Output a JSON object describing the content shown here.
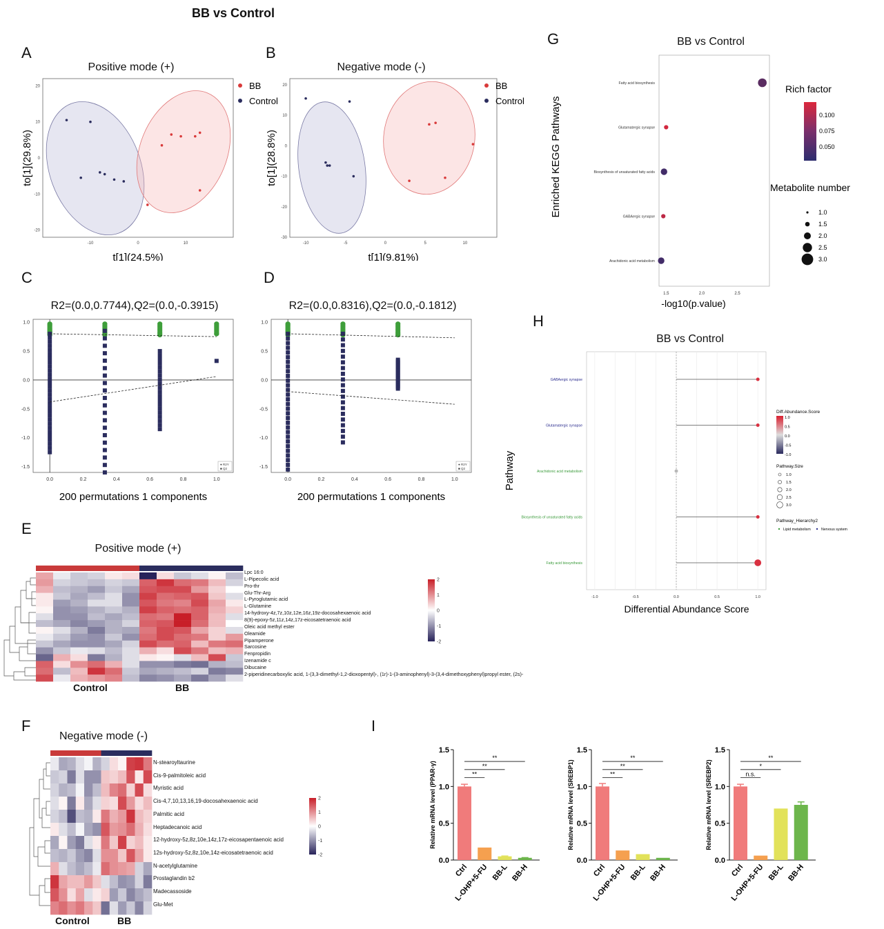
{
  "figure_title": "BB vs Control",
  "panels": {
    "A": {
      "letter": "A",
      "title": "Positive mode (+)",
      "xlabel": "t[1](24.5%)",
      "ylabel": "to[1](29.8%)",
      "legend": [
        "BB",
        "Control"
      ],
      "xticks": [
        "-10",
        "0",
        "10"
      ],
      "yticks": [
        "20",
        "10",
        "0",
        "-10",
        "-20"
      ]
    },
    "B": {
      "letter": "B",
      "title": "Negative mode (-)",
      "xlabel": "t[1](9.81%)",
      "ylabel": "to[1](28.8%)",
      "legend": [
        "BB",
        "Control"
      ],
      "xticks": [
        "-10",
        "-5",
        "0",
        "5",
        "10"
      ],
      "yticks": [
        "20",
        "10",
        "0",
        "-10",
        "-20",
        "-30"
      ]
    },
    "C": {
      "letter": "C",
      "title": "R2=(0.0,0.7744),Q2=(0.0,-0.3915)",
      "xlabel": "200 permutations 1 components",
      "xticks": [
        "0.0",
        "0.2",
        "0.4",
        "0.6",
        "0.8",
        "1.0"
      ],
      "yticks": [
        "1.0",
        "0.5",
        "0.0",
        "-0.5",
        "-1.0",
        "-1.5"
      ],
      "legend": [
        "R2Y",
        "Q2"
      ]
    },
    "D": {
      "letter": "D",
      "title": "R2=(0.0,0.8316),Q2=(0.0,-0.1812)",
      "xlabel": "200 permutations 1 components",
      "xticks": [
        "0.0",
        "0.2",
        "0.4",
        "0.6",
        "0.8",
        "1.0"
      ],
      "yticks": [
        "1.0",
        "0.5",
        "0.0",
        "-0.5",
        "-1.0",
        "-1.5"
      ],
      "legend": [
        "R2Y",
        "Q2"
      ]
    },
    "E": {
      "letter": "E",
      "title": "Positive mode (+)",
      "groups": [
        "Control",
        "BB"
      ],
      "rows": [
        "Lpc 16:0",
        "L-Pipecolic acid",
        "Pro-thr",
        "Glu-Thr-Arg",
        "L-Pyroglutamic acid",
        "L-Glutamine",
        "14-hydroxy-4z,7z,10z,12e,16z,19z-docosahexaenoic acid",
        "8(9)-epoxy-5z,11z,14z,17z-eicosatetraenoic acid",
        "Oleic acid methyl ester",
        "Oleamide",
        "Pipamperone",
        "Sarcosine",
        "Fenpropidin",
        "Izenamide c",
        "Dibucaine",
        "2-piperidinecarboxylic acid, 1-(3,3-dimethyl-1,2-dioxopentyl)-, (1r)-1-(3-aminophenyl)-3-(3,4-dimethoxyphenyl)propyl ester, (2s)-"
      ],
      "scale": [
        "2",
        "1",
        "0",
        "-1",
        "-2"
      ]
    },
    "F": {
      "letter": "F",
      "title": "Negative mode (-)",
      "groups": [
        "Control",
        "BB"
      ],
      "rows": [
        "N-stearoyltaurine",
        "Cis-9-palmitoleic acid",
        "Myristic acid",
        "Cis-4,7,10,13,16,19-docosahexaenoic acid",
        "Palmitic acid",
        "Heptadecanoic acid",
        "12-hydroxy-5z,8z,10e,14z,17z-eicosapentaenoic acid",
        "12s-hydroxy-5z,8z,10e,14z-eicosatetraenoic acid",
        "N-acetylglutamine",
        "Prostaglandin b2",
        "Madecassoside",
        "Glu-Met"
      ],
      "scale": [
        "2",
        "1",
        "0",
        "-1",
        "-2"
      ]
    },
    "G": {
      "letter": "G",
      "title": "BB vs Control",
      "xlabel": "-log10(p.value)",
      "ylabel": "Enriched KEGG Pathways",
      "xticks": [
        "1.5",
        "2.0",
        "2.5"
      ],
      "pathways": [
        "Fatty acid biosynthesis",
        "Glutamatergic synapse",
        "Biosynthesis of unsaturated fatty acids",
        "GABAergic synapse",
        "Arachidonic acid metabolism"
      ],
      "rich_title": "Rich factor",
      "rich_ticks": [
        "0.100",
        "0.075",
        "0.050"
      ],
      "size_title": "Metabolite number",
      "size_ticks": [
        "1.0",
        "1.5",
        "2.0",
        "2.5",
        "3.0"
      ]
    },
    "H": {
      "letter": "H",
      "title": "BB vs Control",
      "xlabel": "Differential Abundance Score",
      "ylabel": "Pathway",
      "xticks": [
        "-1.0",
        "-0.5",
        "0.0",
        "0.5",
        "1.0"
      ],
      "pathways": [
        "GABAergic synapse",
        "Glutamatergic synapse",
        "Arachidonic acid metabolism",
        "Biosynthesis of unsaturated fatty acids",
        "Fatty acid biosynthesis"
      ],
      "legend_score_title": "Diff.Abundance.Score",
      "legend_score_ticks": [
        "1.0",
        "0.5",
        "0.0",
        "-0.5",
        "-1.0"
      ],
      "legend_size_title": "Pathway.Size",
      "legend_size_ticks": [
        "1.0",
        "1.5",
        "2.0",
        "2.5",
        "3.0"
      ],
      "legend_hier_title": "Pathway_Hierarchy2",
      "legend_hier_items": [
        "Lipid metabolism",
        "Nervous system"
      ]
    },
    "I": {
      "letter": "I",
      "groups": [
        "Ctrl",
        "L-OHP+5-FU",
        "BB-L",
        "BB-H"
      ],
      "yticks": [
        "1.5",
        "1.0",
        "0.5",
        "0.0"
      ]
    }
  },
  "chart_data": [
    {
      "type": "scatter",
      "panel": "A",
      "xlim": [
        -20,
        20
      ],
      "ylim": [
        -22,
        22
      ],
      "series": [
        {
          "name": "BB",
          "x": [
            7,
            9,
            12,
            13,
            5,
            13,
            2
          ],
          "y": [
            6.5,
            6,
            6,
            7,
            3.5,
            -9,
            -13
          ]
        },
        {
          "name": "Control",
          "x": [
            -15,
            -10,
            -8,
            -7,
            -5,
            -3,
            -12
          ],
          "y": [
            10.5,
            10,
            -4,
            -4.5,
            -6,
            -6.5,
            -5.5
          ]
        }
      ]
    },
    {
      "type": "scatter",
      "panel": "B",
      "xlim": [
        -12,
        14
      ],
      "ylim": [
        -30,
        22
      ],
      "series": [
        {
          "name": "BB",
          "x": [
            5.5,
            6.3,
            11,
            7.5,
            3
          ],
          "y": [
            7,
            7.5,
            0.5,
            -10.5,
            -11.5
          ]
        },
        {
          "name": "Control",
          "x": [
            -10,
            -4.5,
            -7.5,
            -7.3,
            -7,
            -4
          ],
          "y": [
            15.5,
            14.5,
            -5.5,
            -6.5,
            -6.5,
            -10
          ]
        }
      ]
    },
    {
      "type": "scatter",
      "panel": "C",
      "xlim": [
        -0.1,
        1.1
      ],
      "ylim": [
        -1.6,
        1.05
      ],
      "series": [
        {
          "name": "R2Y",
          "x": [
            0,
            0.33,
            0.66,
            1.0
          ],
          "y": [
            0.95,
            0.93,
            0.93,
            0.8
          ]
        },
        {
          "name": "Q2",
          "x": [
            0,
            0.33,
            0.66,
            1.0
          ],
          "y": [
            -1.25,
            -1.6,
            -0.85,
            0.33
          ]
        }
      ],
      "regression": {
        "R2": [
          0.0,
          0.7744
        ],
        "Q2": [
          0.0,
          -0.3915
        ]
      }
    },
    {
      "type": "scatter",
      "panel": "D",
      "xlim": [
        -0.1,
        1.1
      ],
      "ylim": [
        -1.6,
        1.05
      ],
      "series": [
        {
          "name": "R2Y",
          "x": [
            0,
            0.33,
            0.66
          ],
          "y": [
            0.97,
            0.97,
            0.95
          ]
        },
        {
          "name": "Q2",
          "x": [
            0,
            0.33,
            0.66
          ],
          "y": [
            -1.55,
            -1.08,
            -0.15
          ]
        }
      ],
      "regression": {
        "R2": [
          0.0,
          0.8316
        ],
        "Q2": [
          0.0,
          -0.1812
        ]
      }
    },
    {
      "type": "heatmap",
      "panel": "E",
      "cols": 12,
      "values": [
        [
          0.8,
          -0.2,
          -0.5,
          -0.4,
          0.2,
          0.3,
          -2,
          0.3,
          -0.5,
          -0.3,
          0.1,
          -0.6
        ],
        [
          0.9,
          -0.4,
          -0.5,
          -0.6,
          -0.4,
          -0.5,
          1.4,
          1.8,
          1.3,
          1.2,
          0.6,
          -0.4
        ],
        [
          0.7,
          -0.6,
          -0.7,
          -0.9,
          -0.5,
          -0.8,
          1.5,
          1.6,
          1.6,
          0.9,
          0.4,
          0.0
        ],
        [
          0.2,
          -0.5,
          -0.8,
          -0.6,
          -0.3,
          -1.0,
          1.7,
          1.3,
          1.4,
          1.5,
          0.5,
          -0.3
        ],
        [
          0.2,
          -0.9,
          -0.7,
          -0.3,
          -0.3,
          -1.0,
          1.5,
          1.2,
          1.1,
          1.6,
          0.8,
          0.2
        ],
        [
          0.1,
          -1.0,
          -0.9,
          -0.7,
          -0.5,
          -0.7,
          1.7,
          1.4,
          1.3,
          1.4,
          0.7,
          0.4
        ],
        [
          -0.3,
          -1.0,
          -1.0,
          -0.6,
          -0.8,
          -0.6,
          1.3,
          1.2,
          2.0,
          1.4,
          0.6,
          -0.3
        ],
        [
          -0.6,
          -0.8,
          -1.1,
          -0.9,
          -0.7,
          -0.4,
          1.4,
          1.5,
          2.1,
          1.3,
          0.6,
          0.0
        ],
        [
          0.1,
          -0.3,
          -0.7,
          -1.2,
          -0.7,
          -0.8,
          1.2,
          1.6,
          1.5,
          0.8,
          0.4,
          -0.3
        ],
        [
          -0.2,
          -0.5,
          -0.9,
          -1.0,
          -0.5,
          -1.0,
          1.3,
          1.6,
          1.3,
          1.2,
          0.4,
          0.9
        ],
        [
          -0.5,
          -0.8,
          -1.0,
          -1.0,
          -0.8,
          -0.4,
          1.6,
          1.3,
          1.4,
          0.6,
          1.2,
          1.3
        ],
        [
          -1.0,
          -0.5,
          -0.2,
          -0.3,
          -0.6,
          -0.3,
          0.7,
          0.3,
          1.6,
          1.2,
          0.6,
          0.7
        ],
        [
          -1.4,
          0.7,
          0.3,
          -1.2,
          -0.7,
          -0.3,
          0.2,
          0.1,
          -0.3,
          0.6,
          1.6,
          -0.5
        ],
        [
          1.4,
          0.3,
          1.0,
          1.3,
          0.7,
          -0.3,
          -1.0,
          -1.0,
          -1.2,
          -1.3,
          -0.7,
          -0.6
        ],
        [
          1.3,
          -0.6,
          0.6,
          1.8,
          1.3,
          -0.5,
          -0.8,
          -0.7,
          -0.6,
          -0.4,
          -1.2,
          -1.1
        ],
        [
          1.6,
          -0.2,
          0.7,
          0.9,
          1.1,
          -0.6,
          -1.1,
          -1.0,
          -0.8,
          -1.2,
          -0.8,
          -0.3
        ]
      ]
    },
    {
      "type": "heatmap",
      "panel": "F",
      "cols": 12,
      "values": [
        [
          -0.2,
          -0.8,
          -0.7,
          -0.3,
          -0.1,
          -0.7,
          -0.4,
          0.3,
          0.1,
          1.7,
          1.8,
          1.2
        ],
        [
          -0.5,
          -0.4,
          -1.2,
          -0.3,
          -1.0,
          -1.0,
          0.5,
          0.4,
          0.6,
          1.5,
          0.2,
          1.6
        ],
        [
          -0.4,
          -0.7,
          -0.6,
          -0.1,
          -1.0,
          -0.6,
          0.6,
          1.1,
          1.3,
          0.4,
          1.6,
          0.3
        ],
        [
          -0.3,
          0.1,
          -1.2,
          0.2,
          -0.8,
          -0.3,
          0.4,
          0.3,
          1.6,
          0.9,
          0.3,
          0.6
        ],
        [
          -0.4,
          -0.6,
          -1.6,
          -0.6,
          -0.7,
          0.2,
          1.2,
          0.7,
          0.9,
          1.8,
          0.6,
          0.4
        ],
        [
          0.2,
          -0.3,
          -0.6,
          -0.1,
          -0.8,
          -1.0,
          1.5,
          0.9,
          1.0,
          1.3,
          0.7,
          0.3
        ],
        [
          -0.8,
          0.1,
          -0.9,
          -1.2,
          -0.3,
          0.2,
          1.2,
          0.5,
          1.7,
          0.4,
          0.6,
          0.2
        ],
        [
          -0.6,
          -0.7,
          -0.5,
          -0.9,
          -1.1,
          -0.3,
          1.0,
          1.0,
          0.5,
          1.5,
          0.8,
          0.2
        ],
        [
          0.7,
          -0.3,
          -0.6,
          -0.8,
          -0.6,
          -0.2,
          1.3,
          1.0,
          0.9,
          0.8,
          -0.4,
          -0.8
        ],
        [
          1.8,
          0.8,
          0.6,
          0.6,
          0.9,
          0.5,
          -0.3,
          -0.6,
          -1.0,
          -0.9,
          -0.4,
          -1.2
        ],
        [
          1.5,
          1.0,
          0.3,
          0.8,
          -0.3,
          0.2,
          0.4,
          -0.9,
          -0.5,
          -1.1,
          -0.8,
          -0.6
        ],
        [
          1.1,
          1.3,
          1.0,
          1.2,
          0.8,
          0.5,
          -1.3,
          -0.3,
          -0.9,
          -0.5,
          -1.1,
          -0.4
        ]
      ]
    },
    {
      "type": "scatter",
      "panel": "G",
      "xlim": [
        1.4,
        2.95
      ],
      "x": [
        2.85,
        1.5,
        1.47,
        1.46,
        1.43
      ],
      "size": [
        3,
        1,
        2,
        1,
        2
      ],
      "rich_factor": [
        0.062,
        0.12,
        0.05,
        0.11,
        0.05
      ]
    },
    {
      "type": "scatter",
      "panel": "H",
      "xlim": [
        -1.1,
        1.1
      ],
      "x": [
        1.0,
        1.0,
        0.0,
        1.0,
        1.0
      ],
      "size": [
        1,
        1,
        1,
        1,
        3
      ]
    },
    {
      "type": "bar",
      "panel": "I-1",
      "ylabel": "Relative mRNA level (PPAR-γ)",
      "categories": [
        "Ctrl",
        "L-OHP+5-FU",
        "BB-L",
        "BB-H"
      ],
      "values": [
        1.0,
        0.17,
        0.05,
        0.03
      ],
      "err": [
        0.03,
        0,
        0.005,
        0.003
      ],
      "ylim": [
        0,
        1.5
      ],
      "colors": [
        "#f07b7b",
        "#f5a04f",
        "#e2e25a",
        "#6db64c"
      ],
      "sig": [
        "**",
        "**",
        "**"
      ]
    },
    {
      "type": "bar",
      "panel": "I-2",
      "ylabel": "Relative mRNA level (SREBP1)",
      "categories": [
        "Ctrl",
        "L-OHP+5-FU",
        "BB-L",
        "BB-H"
      ],
      "values": [
        1.0,
        0.13,
        0.08,
        0.03
      ],
      "err": [
        0.04,
        0,
        0,
        0
      ],
      "ylim": [
        0,
        1.5
      ],
      "colors": [
        "#f07b7b",
        "#f5a04f",
        "#e2e25a",
        "#6db64c"
      ],
      "sig": [
        "**",
        "**",
        "**"
      ]
    },
    {
      "type": "bar",
      "panel": "I-3",
      "ylabel": "Relative mRNA level (SREBP2)",
      "categories": [
        "Ctrl",
        "L-OHP+5-FU",
        "BB-L",
        "BB-H"
      ],
      "values": [
        1.0,
        0.06,
        0.7,
        0.75
      ],
      "err": [
        0.03,
        0,
        0,
        0.04
      ],
      "ylim": [
        0,
        1.5
      ],
      "colors": [
        "#f07b7b",
        "#f5a04f",
        "#e2e25a",
        "#6db64c"
      ],
      "sig": [
        "n.s.",
        "*",
        "**"
      ]
    }
  ]
}
